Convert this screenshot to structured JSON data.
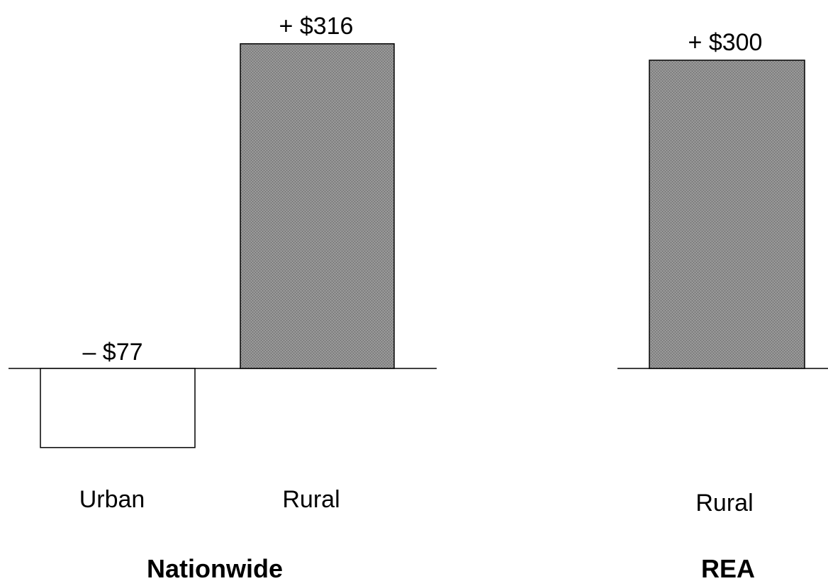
{
  "chart_data": [
    {
      "type": "bar",
      "group_label": "Nationwide",
      "categories": [
        "Urban",
        "Rural"
      ],
      "values": [
        -77,
        316
      ],
      "data_labels": [
        "– $77",
        "+ $316"
      ],
      "value_unit": "$",
      "ylim": [
        -90,
        340
      ],
      "colors": [
        "#ffffff",
        "#8a8a8a"
      ],
      "grid": false,
      "legend": "none"
    },
    {
      "type": "bar",
      "group_label": "REA",
      "categories": [
        "Rural"
      ],
      "values": [
        300
      ],
      "data_labels": [
        "+ $300"
      ],
      "value_unit": "$",
      "ylim": [
        -90,
        340
      ],
      "colors": [
        "#8a8a8a"
      ],
      "grid": false,
      "legend": "none"
    }
  ]
}
